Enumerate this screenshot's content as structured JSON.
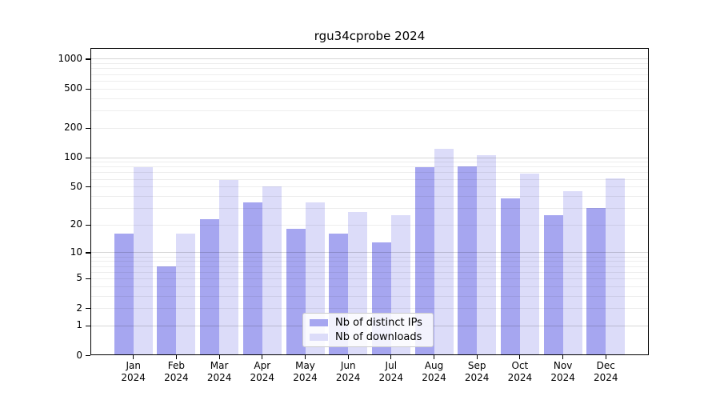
{
  "title": "rgu34cprobe 2024",
  "colors": {
    "ips": "#a6a6f0",
    "downloads": "#dcdcf9",
    "axis": "#000000",
    "grid_major": "rgba(0,0,0,0.16)",
    "grid_minor": "rgba(0,0,0,0.07)",
    "legend_bg": "rgba(255,255,255,0.85)",
    "legend_border": "#cccccc"
  },
  "legend": {
    "items": [
      {
        "label": "Nb of distinct IPs",
        "series": "ips"
      },
      {
        "label": "Nb of downloads",
        "series": "downloads"
      }
    ]
  },
  "chart_data": {
    "type": "bar",
    "title": "rgu34cprobe 2024",
    "x_categories": [
      "Jan",
      "Feb",
      "Mar",
      "Apr",
      "May",
      "Jun",
      "Jul",
      "Aug",
      "Sep",
      "Oct",
      "Nov",
      "Dec"
    ],
    "x_year": "2024",
    "series": [
      {
        "name": "Nb of distinct IPs",
        "key": "ips",
        "values": [
          16,
          7,
          23,
          34,
          18,
          16,
          13,
          79,
          80,
          38,
          25,
          30
        ]
      },
      {
        "name": "Nb of downloads",
        "key": "downloads",
        "values": [
          79,
          16,
          58,
          50,
          34,
          27,
          25,
          123,
          104,
          68,
          45,
          61
        ]
      }
    ],
    "y_scale": "log10(1+x)",
    "y_ticks": [
      0,
      1,
      2,
      5,
      10,
      20,
      50,
      100,
      200,
      500,
      1000
    ],
    "y_major_gridlines": [
      1,
      10,
      100,
      1000
    ],
    "y_minor_gridlines": [
      2,
      3,
      4,
      5,
      6,
      7,
      8,
      9,
      20,
      30,
      40,
      50,
      60,
      70,
      80,
      90,
      200,
      300,
      400,
      500,
      600,
      700,
      800,
      900
    ],
    "ylim": [
      0,
      1100
    ],
    "grid": "on",
    "legend_position": "lower-center",
    "xlabel": "",
    "ylabel": ""
  }
}
